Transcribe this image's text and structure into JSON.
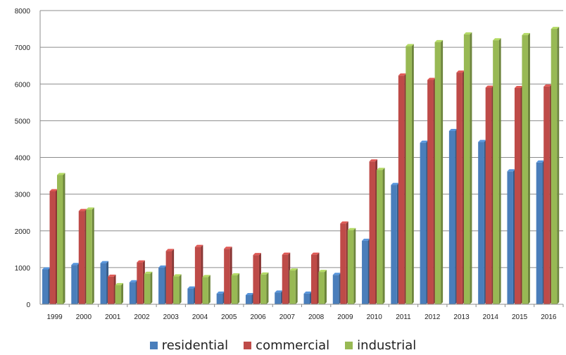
{
  "chart_data": {
    "type": "bar",
    "title": "",
    "xlabel": "",
    "ylabel": "",
    "ylim": [
      0,
      8000
    ],
    "y_ticks": [
      "0",
      "1000",
      "2000",
      "3000",
      "4000",
      "5000",
      "6000",
      "7000",
      "8000"
    ],
    "grid": true,
    "legend_position": "bottom",
    "categories": [
      "1999",
      "2000",
      "2001",
      "2002",
      "2003",
      "2004",
      "2005",
      "2006",
      "2007",
      "2008",
      "2009",
      "2010",
      "2011",
      "2012",
      "2013",
      "2014",
      "2015",
      "2016"
    ],
    "series": [
      {
        "name": "residential",
        "color": "#4a7ebb",
        "values": [
          950,
          1070,
          1120,
          600,
          1000,
          430,
          290,
          250,
          320,
          290,
          800,
          1730,
          3250,
          4400,
          4720,
          4420,
          3620,
          3860
        ]
      },
      {
        "name": "commercial",
        "color": "#be4b48",
        "values": [
          3080,
          2540,
          750,
          1140,
          1450,
          1560,
          1510,
          1340,
          1350,
          1350,
          2200,
          3890,
          6230,
          6110,
          6310,
          5900,
          5890,
          5930
        ]
      },
      {
        "name": "industrial",
        "color": "#98b954",
        "values": [
          3520,
          2580,
          520,
          830,
          760,
          740,
          790,
          810,
          920,
          880,
          2020,
          3660,
          7030,
          7140,
          7350,
          7190,
          7330,
          7500
        ]
      }
    ]
  }
}
